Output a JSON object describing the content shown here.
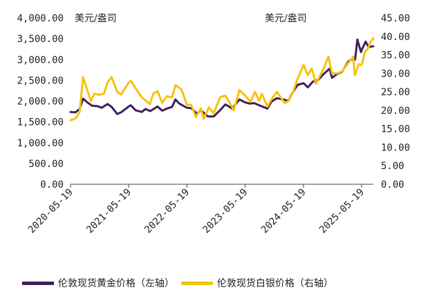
{
  "chart_data": {
    "type": "line",
    "unit_left": "美元/盎司",
    "unit_right": "美元/盎司",
    "y_left": {
      "min": 0,
      "max": 4000,
      "ticks": [
        "0.00",
        "500.00",
        "1,000.00",
        "1,500.00",
        "2,000.00",
        "2,500.00",
        "3,000.00",
        "3,500.00",
        "4,000.00"
      ]
    },
    "y_right": {
      "min": 0,
      "max": 45,
      "ticks": [
        "0.00",
        "5.00",
        "10.00",
        "15.00",
        "20.00",
        "25.00",
        "30.00",
        "35.00",
        "40.00",
        "45.00"
      ]
    },
    "x_ticks": [
      "2020-05-19",
      "2021-05-19",
      "2022-05-19",
      "2023-05-19",
      "2024-05-19",
      "2025-05-19"
    ],
    "x_range": [
      "2020-05-19",
      "2025-07-31"
    ],
    "series": [
      {
        "name": "伦敦现货黄金价格（左轴）",
        "axis": "left",
        "color": "#3d1f5c",
        "points": [
          [
            "2020-05-19",
            1740
          ],
          [
            "2020-06-19",
            1730
          ],
          [
            "2020-07-15",
            1810
          ],
          [
            "2020-08-06",
            2060
          ],
          [
            "2020-09-01",
            1970
          ],
          [
            "2020-10-01",
            1890
          ],
          [
            "2020-11-01",
            1880
          ],
          [
            "2020-12-01",
            1840
          ],
          [
            "2021-01-06",
            1930
          ],
          [
            "2021-02-01",
            1860
          ],
          [
            "2021-03-08",
            1690
          ],
          [
            "2021-04-01",
            1730
          ],
          [
            "2021-05-19",
            1870
          ],
          [
            "2021-06-01",
            1900
          ],
          [
            "2021-07-01",
            1780
          ],
          [
            "2021-08-09",
            1740
          ],
          [
            "2021-09-01",
            1810
          ],
          [
            "2021-10-01",
            1760
          ],
          [
            "2021-11-16",
            1870
          ],
          [
            "2021-12-15",
            1770
          ],
          [
            "2022-01-14",
            1820
          ],
          [
            "2022-02-15",
            1860
          ],
          [
            "2022-03-08",
            2040
          ],
          [
            "2022-04-01",
            1940
          ],
          [
            "2022-05-19",
            1840
          ],
          [
            "2022-06-15",
            1830
          ],
          [
            "2022-07-21",
            1700
          ],
          [
            "2022-08-15",
            1780
          ],
          [
            "2022-09-28",
            1630
          ],
          [
            "2022-11-03",
            1630
          ],
          [
            "2022-12-15",
            1790
          ],
          [
            "2023-01-15",
            1920
          ],
          [
            "2023-02-28",
            1820
          ],
          [
            "2023-04-13",
            2040
          ],
          [
            "2023-05-19",
            1970
          ],
          [
            "2023-06-15",
            1940
          ],
          [
            "2023-07-15",
            1950
          ],
          [
            "2023-08-15",
            1900
          ],
          [
            "2023-10-06",
            1820
          ],
          [
            "2023-11-01",
            1990
          ],
          [
            "2023-12-04",
            2070
          ],
          [
            "2024-01-15",
            2040
          ],
          [
            "2024-02-14",
            2000
          ],
          [
            "2024-03-08",
            2180
          ],
          [
            "2024-04-12",
            2390
          ],
          [
            "2024-05-20",
            2430
          ],
          [
            "2024-06-15",
            2330
          ],
          [
            "2024-07-17",
            2470
          ],
          [
            "2024-08-20",
            2510
          ],
          [
            "2024-09-25",
            2660
          ],
          [
            "2024-10-30",
            2780
          ],
          [
            "2024-11-14",
            2560
          ],
          [
            "2024-12-15",
            2650
          ],
          [
            "2025-01-15",
            2700
          ],
          [
            "2025-02-24",
            2950
          ],
          [
            "2025-03-15",
            3000
          ],
          [
            "2025-04-08",
            3000
          ],
          [
            "2025-04-22",
            3480
          ],
          [
            "2025-05-15",
            3180
          ],
          [
            "2025-05-19",
            3230
          ],
          [
            "2025-06-13",
            3430
          ],
          [
            "2025-07-01",
            3300
          ],
          [
            "2025-07-31",
            3320
          ]
        ]
      },
      {
        "name": "伦敦现货白银价格（右轴）",
        "axis": "right",
        "color": "#f6c20e",
        "points": [
          [
            "2020-05-19",
            17.3
          ],
          [
            "2020-06-19",
            17.8
          ],
          [
            "2020-07-15",
            19.5
          ],
          [
            "2020-08-06",
            29.0
          ],
          [
            "2020-08-20",
            27.0
          ],
          [
            "2020-09-24",
            22.5
          ],
          [
            "2020-10-15",
            24.5
          ],
          [
            "2020-11-16",
            24.2
          ],
          [
            "2020-12-15",
            24.5
          ],
          [
            "2021-01-06",
            27.5
          ],
          [
            "2021-02-01",
            29.0
          ],
          [
            "2021-03-08",
            25.0
          ],
          [
            "2021-04-01",
            24.3
          ],
          [
            "2021-05-19",
            27.5
          ],
          [
            "2021-06-01",
            28.0
          ],
          [
            "2021-07-01",
            26.0
          ],
          [
            "2021-08-09",
            23.5
          ],
          [
            "2021-09-29",
            21.7
          ],
          [
            "2021-10-20",
            24.5
          ],
          [
            "2021-11-16",
            25.2
          ],
          [
            "2021-12-15",
            22.0
          ],
          [
            "2022-01-14",
            23.8
          ],
          [
            "2022-02-15",
            23.5
          ],
          [
            "2022-03-08",
            26.8
          ],
          [
            "2022-04-15",
            25.7
          ],
          [
            "2022-05-19",
            21.5
          ],
          [
            "2022-06-15",
            21.5
          ],
          [
            "2022-07-14",
            18.2
          ],
          [
            "2022-08-15",
            20.5
          ],
          [
            "2022-09-01",
            17.7
          ],
          [
            "2022-10-04",
            20.8
          ],
          [
            "2022-11-03",
            19.2
          ],
          [
            "2022-12-15",
            23.6
          ],
          [
            "2023-01-15",
            24.0
          ],
          [
            "2023-02-28",
            20.8
          ],
          [
            "2023-03-09",
            20.0
          ],
          [
            "2023-04-13",
            25.5
          ],
          [
            "2023-05-19",
            24.0
          ],
          [
            "2023-06-22",
            22.3
          ],
          [
            "2023-07-20",
            25.0
          ],
          [
            "2023-08-15",
            22.5
          ],
          [
            "2023-09-01",
            24.5
          ],
          [
            "2023-10-06",
            21.0
          ],
          [
            "2023-11-01",
            23.0
          ],
          [
            "2023-12-04",
            25.0
          ],
          [
            "2024-01-22",
            22.0
          ],
          [
            "2024-02-15",
            22.5
          ],
          [
            "2024-03-15",
            25.0
          ],
          [
            "2024-04-12",
            28.5
          ],
          [
            "2024-05-20",
            32.3
          ],
          [
            "2024-06-15",
            29.5
          ],
          [
            "2024-07-10",
            31.3
          ],
          [
            "2024-08-05",
            27.2
          ],
          [
            "2024-09-25",
            31.5
          ],
          [
            "2024-10-22",
            34.5
          ],
          [
            "2024-11-14",
            30.0
          ],
          [
            "2024-12-15",
            30.0
          ],
          [
            "2025-01-15",
            30.5
          ],
          [
            "2025-02-24",
            32.8
          ],
          [
            "2025-03-27",
            34.5
          ],
          [
            "2025-04-07",
            29.5
          ],
          [
            "2025-05-01",
            32.5
          ],
          [
            "2025-05-19",
            32.3
          ],
          [
            "2025-06-10",
            36.0
          ],
          [
            "2025-06-25",
            36.5
          ],
          [
            "2025-07-14",
            38.5
          ],
          [
            "2025-07-31",
            39.5
          ]
        ]
      }
    ]
  }
}
